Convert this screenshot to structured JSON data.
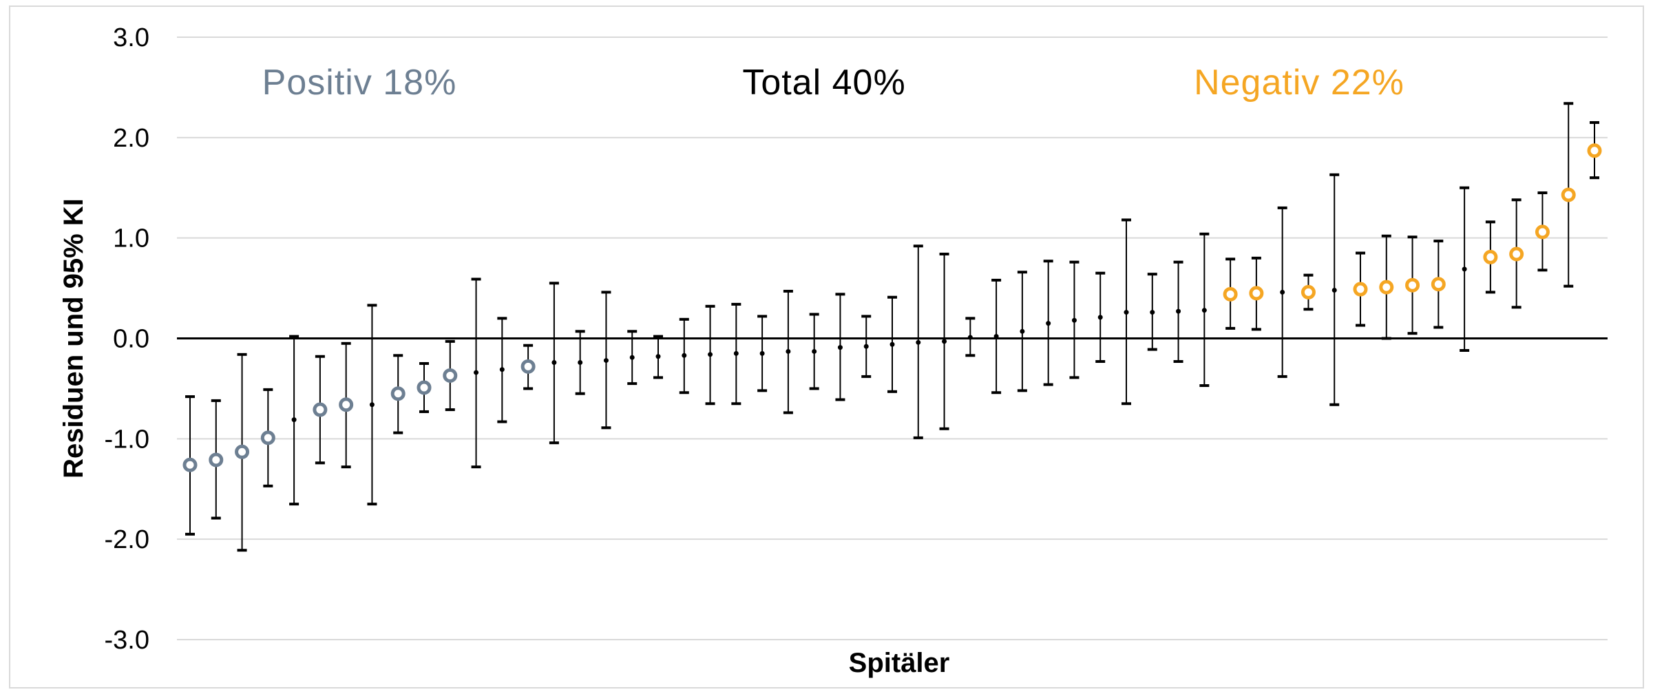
{
  "chart_data": {
    "type": "scatter",
    "xlabel": "Spitäler",
    "ylabel": "Residuen und 95% KI",
    "ylim": [
      -3.0,
      3.0
    ],
    "yticks": [
      "3.0",
      "2.0",
      "1.0",
      "0.0",
      "-1.0",
      "-2.0",
      "-3.0"
    ],
    "grid": true,
    "annotations": [
      {
        "text": "Positiv 18%",
        "color": "#6d7f92",
        "position": "top-left"
      },
      {
        "text": "Total 40%",
        "color": "#000000",
        "position": "top-center"
      },
      {
        "text": "Negativ 22%",
        "color": "#f5a623",
        "position": "top-right"
      }
    ],
    "colors": {
      "positive": "#6d7f92",
      "negative": "#f5a623",
      "neutral": "#000000",
      "grid": "#d9d9d9"
    },
    "points": [
      {
        "y": -1.26,
        "lo": -1.95,
        "hi": -0.58,
        "group": "positive"
      },
      {
        "y": -1.21,
        "lo": -1.79,
        "hi": -0.62,
        "group": "positive"
      },
      {
        "y": -1.13,
        "lo": -2.11,
        "hi": -0.16,
        "group": "positive"
      },
      {
        "y": -0.99,
        "lo": -1.47,
        "hi": -0.51,
        "group": "positive"
      },
      {
        "y": -0.81,
        "lo": -1.65,
        "hi": 0.02,
        "group": "neutral"
      },
      {
        "y": -0.71,
        "lo": -1.24,
        "hi": -0.18,
        "group": "positive"
      },
      {
        "y": -0.66,
        "lo": -1.28,
        "hi": -0.05,
        "group": "positive"
      },
      {
        "y": -0.66,
        "lo": -1.65,
        "hi": 0.33,
        "group": "neutral"
      },
      {
        "y": -0.55,
        "lo": -0.94,
        "hi": -0.17,
        "group": "positive"
      },
      {
        "y": -0.49,
        "lo": -0.73,
        "hi": -0.25,
        "group": "positive"
      },
      {
        "y": -0.37,
        "lo": -0.71,
        "hi": -0.03,
        "group": "positive"
      },
      {
        "y": -0.34,
        "lo": -1.28,
        "hi": 0.59,
        "group": "neutral"
      },
      {
        "y": -0.31,
        "lo": -0.83,
        "hi": 0.2,
        "group": "neutral"
      },
      {
        "y": -0.28,
        "lo": -0.5,
        "hi": -0.07,
        "group": "positive"
      },
      {
        "y": -0.24,
        "lo": -1.04,
        "hi": 0.55,
        "group": "neutral"
      },
      {
        "y": -0.24,
        "lo": -0.55,
        "hi": 0.07,
        "group": "neutral"
      },
      {
        "y": -0.22,
        "lo": -0.89,
        "hi": 0.46,
        "group": "neutral"
      },
      {
        "y": -0.19,
        "lo": -0.45,
        "hi": 0.07,
        "group": "neutral"
      },
      {
        "y": -0.18,
        "lo": -0.39,
        "hi": 0.02,
        "group": "neutral"
      },
      {
        "y": -0.17,
        "lo": -0.54,
        "hi": 0.19,
        "group": "neutral"
      },
      {
        "y": -0.16,
        "lo": -0.65,
        "hi": 0.32,
        "group": "neutral"
      },
      {
        "y": -0.15,
        "lo": -0.65,
        "hi": 0.34,
        "group": "neutral"
      },
      {
        "y": -0.15,
        "lo": -0.52,
        "hi": 0.22,
        "group": "neutral"
      },
      {
        "y": -0.13,
        "lo": -0.74,
        "hi": 0.47,
        "group": "neutral"
      },
      {
        "y": -0.13,
        "lo": -0.5,
        "hi": 0.24,
        "group": "neutral"
      },
      {
        "y": -0.09,
        "lo": -0.61,
        "hi": 0.44,
        "group": "neutral"
      },
      {
        "y": -0.08,
        "lo": -0.38,
        "hi": 0.22,
        "group": "neutral"
      },
      {
        "y": -0.06,
        "lo": -0.53,
        "hi": 0.41,
        "group": "neutral"
      },
      {
        "y": -0.04,
        "lo": -0.99,
        "hi": 0.92,
        "group": "neutral"
      },
      {
        "y": -0.03,
        "lo": -0.9,
        "hi": 0.84,
        "group": "neutral"
      },
      {
        "y": 0.01,
        "lo": -0.17,
        "hi": 0.2,
        "group": "neutral"
      },
      {
        "y": 0.02,
        "lo": -0.54,
        "hi": 0.58,
        "group": "neutral"
      },
      {
        "y": 0.07,
        "lo": -0.52,
        "hi": 0.66,
        "group": "neutral"
      },
      {
        "y": 0.15,
        "lo": -0.46,
        "hi": 0.77,
        "group": "neutral"
      },
      {
        "y": 0.18,
        "lo": -0.39,
        "hi": 0.76,
        "group": "neutral"
      },
      {
        "y": 0.21,
        "lo": -0.23,
        "hi": 0.65,
        "group": "neutral"
      },
      {
        "y": 0.26,
        "lo": -0.65,
        "hi": 1.18,
        "group": "neutral"
      },
      {
        "y": 0.26,
        "lo": -0.11,
        "hi": 0.64,
        "group": "neutral"
      },
      {
        "y": 0.27,
        "lo": -0.23,
        "hi": 0.76,
        "group": "neutral"
      },
      {
        "y": 0.28,
        "lo": -0.47,
        "hi": 1.04,
        "group": "neutral"
      },
      {
        "y": 0.44,
        "lo": 0.1,
        "hi": 0.79,
        "group": "negative"
      },
      {
        "y": 0.45,
        "lo": 0.09,
        "hi": 0.8,
        "group": "negative"
      },
      {
        "y": 0.46,
        "lo": -0.38,
        "hi": 1.3,
        "group": "neutral"
      },
      {
        "y": 0.46,
        "lo": 0.29,
        "hi": 0.63,
        "group": "negative"
      },
      {
        "y": 0.48,
        "lo": -0.66,
        "hi": 1.63,
        "group": "neutral"
      },
      {
        "y": 0.49,
        "lo": 0.13,
        "hi": 0.85,
        "group": "negative"
      },
      {
        "y": 0.51,
        "lo": 0.0,
        "hi": 1.02,
        "group": "negative"
      },
      {
        "y": 0.53,
        "lo": 0.05,
        "hi": 1.01,
        "group": "negative"
      },
      {
        "y": 0.54,
        "lo": 0.11,
        "hi": 0.97,
        "group": "negative"
      },
      {
        "y": 0.69,
        "lo": -0.12,
        "hi": 1.5,
        "group": "neutral"
      },
      {
        "y": 0.81,
        "lo": 0.46,
        "hi": 1.16,
        "group": "negative"
      },
      {
        "y": 0.84,
        "lo": 0.31,
        "hi": 1.38,
        "group": "negative"
      },
      {
        "y": 1.06,
        "lo": 0.68,
        "hi": 1.45,
        "group": "negative"
      },
      {
        "y": 1.43,
        "lo": 0.52,
        "hi": 2.34,
        "group": "negative"
      },
      {
        "y": 1.87,
        "lo": 1.6,
        "hi": 2.15,
        "group": "negative"
      }
    ]
  }
}
